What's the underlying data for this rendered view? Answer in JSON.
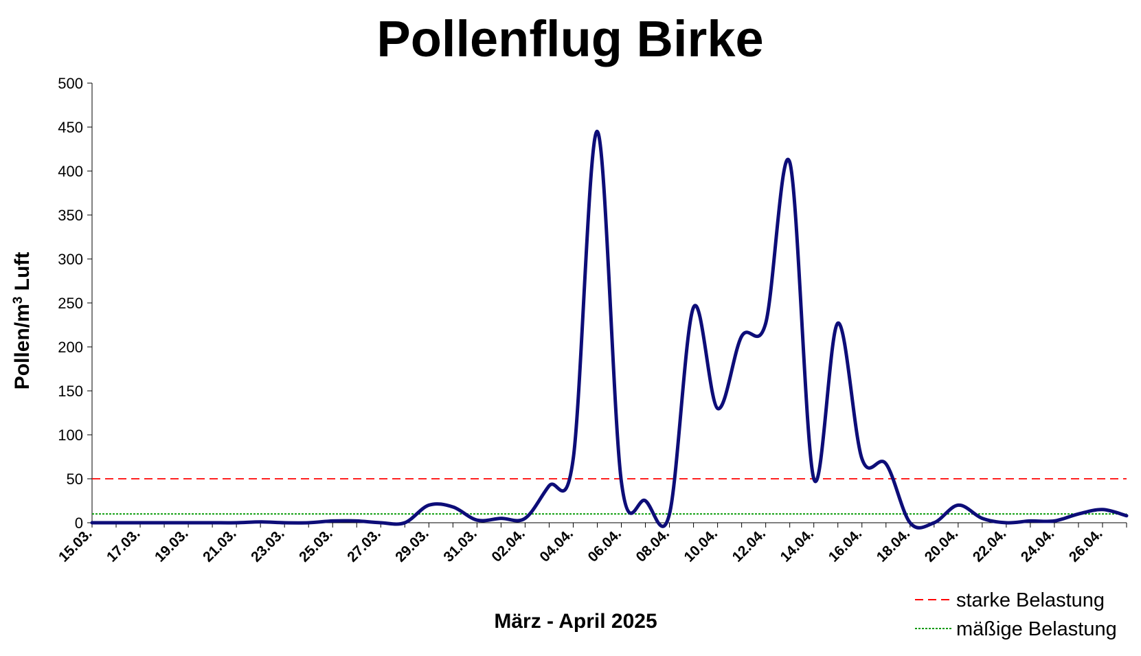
{
  "chart_data": {
    "type": "line",
    "title": "Pollenflug Birke",
    "xlabel": "März - April 2025",
    "ylabel": {
      "before": "Pollen/m",
      "sup": "3",
      "after": " Luft"
    },
    "ylim": [
      0,
      500
    ],
    "yticks": [
      0,
      50,
      100,
      150,
      200,
      250,
      300,
      350,
      400,
      450,
      500
    ],
    "tick_labels": [
      "15.03.",
      "17.03.",
      "19.03.",
      "21.03.",
      "23.03.",
      "25.03.",
      "27.03.",
      "29.03.",
      "31.03.",
      "02.04.",
      "04.04.",
      "06.04.",
      "08.04.",
      "10.04.",
      "12.04.",
      "14.04.",
      "16.04.",
      "18.04.",
      "20.04.",
      "22.04.",
      "24.04.",
      "26.04."
    ],
    "x": [
      "15.03.",
      "16.03.",
      "17.03.",
      "18.03.",
      "19.03.",
      "20.03.",
      "21.03.",
      "22.03.",
      "23.03.",
      "24.03.",
      "25.03.",
      "26.03.",
      "27.03.",
      "28.03.",
      "29.03.",
      "30.03.",
      "31.03.",
      "01.04.",
      "02.04.",
      "03.04.",
      "04.04.",
      "05.04.",
      "06.04.",
      "07.04.",
      "08.04.",
      "09.04.",
      "10.04.",
      "11.04.",
      "12.04.",
      "13.04.",
      "14.04.",
      "15.04.",
      "16.04.",
      "17.04.",
      "18.04.",
      "19.04.",
      "20.04.",
      "21.04.",
      "22.04.",
      "23.04.",
      "24.04.",
      "25.04.",
      "26.04.",
      "27.04."
    ],
    "series": [
      {
        "values": [
          0,
          0,
          0,
          0,
          0,
          0,
          0,
          1,
          0,
          0,
          2,
          2,
          0,
          0,
          20,
          18,
          3,
          5,
          5,
          42,
          73,
          445,
          47,
          25,
          10,
          245,
          130,
          212,
          227,
          410,
          50,
          227,
          73,
          67,
          0,
          0,
          20,
          5,
          0,
          2,
          2,
          10,
          15,
          8
        ],
        "color": "#0d0d78"
      }
    ],
    "reference_lines": [
      {
        "name": "starke Belastung",
        "value": 50,
        "color": "#ff0000",
        "style": "dashed"
      },
      {
        "name": "mäßige Belastung",
        "value": 10,
        "color": "#009900",
        "style": "dotted"
      }
    ],
    "grid": false,
    "legend_position": "bottom-right"
  }
}
